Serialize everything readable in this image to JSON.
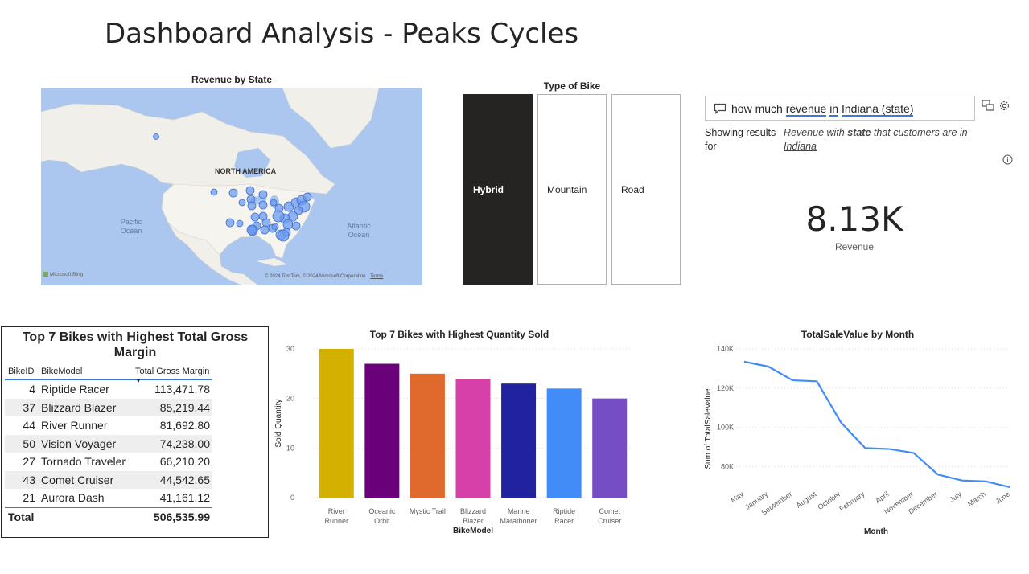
{
  "page_title": "Dashboard Analysis - Peaks Cycles",
  "map_visual": {
    "title": "Revenue by State",
    "labels": {
      "continent": "NORTH AMERICA",
      "pacific_1": "Pacific",
      "pacific_2": "Ocean",
      "atlantic_1": "Atlantic",
      "atlantic_2": "Ocean"
    },
    "logo": "Microsoft Bing",
    "attribution": "© 2024 TomTom, © 2024 Microsoft Corporation",
    "terms": "Terms",
    "bubble_color": "#6b9bef"
  },
  "slicer": {
    "title": "Type of Bike",
    "options": [
      "Hybrid",
      "Mountain",
      "Road"
    ],
    "selected": "Hybrid"
  },
  "qna": {
    "question_parts": [
      "how much ",
      "revenue",
      " ",
      "in",
      " ",
      "Indiana (state)"
    ],
    "showing_label": "Showing results for",
    "result_parts": [
      "Revenue",
      " with ",
      "state",
      " that customers are in ",
      "Indiana"
    ],
    "answer_value": "8.13K",
    "answer_label": "Revenue"
  },
  "table": {
    "title": "Top 7 Bikes with Highest Total Gross Margin",
    "columns": [
      "BikeID",
      "BikeModel",
      "Total Gross Margin"
    ],
    "rows": [
      [
        "4",
        "Riptide Racer",
        "113,471.78"
      ],
      [
        "37",
        "Blizzard Blazer",
        "85,219.44"
      ],
      [
        "44",
        "River Runner",
        "81,692.80"
      ],
      [
        "50",
        "Vision Voyager",
        "74,238.00"
      ],
      [
        "27",
        "Tornado Traveler",
        "66,210.20"
      ],
      [
        "43",
        "Comet Cruiser",
        "44,542.65"
      ],
      [
        "21",
        "Aurora Dash",
        "41,161.12"
      ]
    ],
    "total_label": "Total",
    "total_value": "506,535.99"
  },
  "chart_data": [
    {
      "type": "bar",
      "title": "Top 7 Bikes with Highest Quantity Sold",
      "xlabel": "BikeModel",
      "ylabel": "Sold Quantity",
      "ylim": [
        0,
        30
      ],
      "yticks": [
        0,
        10,
        20,
        30
      ],
      "grid": true,
      "categories": [
        [
          "River",
          "Runner"
        ],
        [
          "Oceanic",
          "Orbit"
        ],
        [
          "Mystic Trail"
        ],
        [
          "Blizzard",
          "Blazer"
        ],
        [
          "Marine",
          "Marathoner"
        ],
        [
          "Riptide",
          "Racer"
        ],
        [
          "Comet",
          "Cruiser"
        ]
      ],
      "values": [
        30,
        27,
        25,
        24,
        23,
        22,
        20
      ],
      "colors": [
        "#d4b000",
        "#6b007b",
        "#e06a2e",
        "#d640a8",
        "#2022a0",
        "#418cf7",
        "#744ec2"
      ]
    },
    {
      "type": "line",
      "title": "TotalSaleValue by Month",
      "xlabel": "Month",
      "ylabel": "Sum of TotalSaleValue",
      "ylim": [
        70000,
        140000
      ],
      "yticks": [
        80000,
        100000,
        120000,
        140000
      ],
      "ytick_labels": [
        "80K",
        "100K",
        "120K",
        "140K"
      ],
      "grid": true,
      "x": [
        "May",
        "January",
        "September",
        "August",
        "October",
        "February",
        "April",
        "November",
        "December",
        "July",
        "March",
        "June"
      ],
      "values": [
        133500,
        131000,
        124000,
        123500,
        102500,
        89500,
        89000,
        87000,
        76000,
        73000,
        72500,
        69500
      ],
      "color": "#418cf7"
    }
  ]
}
